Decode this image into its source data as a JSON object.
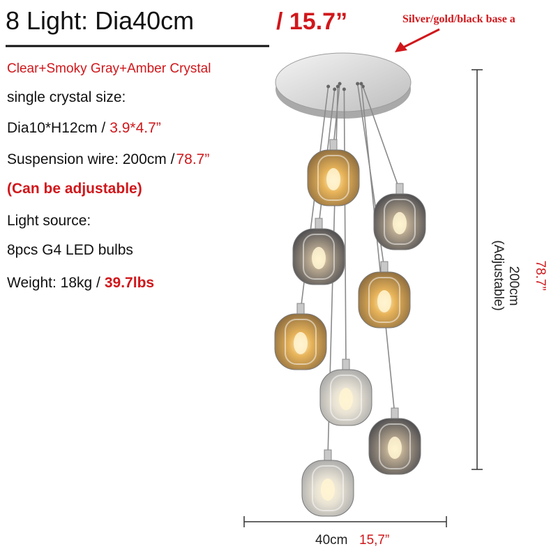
{
  "header": {
    "title": "8 Light: Dia40cm",
    "title_alt": "/ 15.7”",
    "base_note": "Silver/gold/black base a"
  },
  "specs": [
    {
      "label": "Clear+Smoky Gray+Amber Crystal"
    },
    {
      "label": "single crystal size:"
    },
    {
      "label": "Dia10*H12cm /",
      "alt": "3.9*4.7”"
    },
    {
      "label": "Suspension wire: 200cm /",
      "alt": "78.7”"
    },
    {
      "label": "(Can be adjustable)"
    },
    {
      "label": "Light source:"
    },
    {
      "label": "8pcs G4 LED bulbs"
    },
    {
      "label": "Weight: 18kg  /",
      "alt": "39.7lbs"
    }
  ],
  "dimensions": {
    "height": "200cm",
    "height_note": "(Adjustable)",
    "height_alt": "78.7”",
    "width": "40cm",
    "width_alt": "15,7”"
  }
}
